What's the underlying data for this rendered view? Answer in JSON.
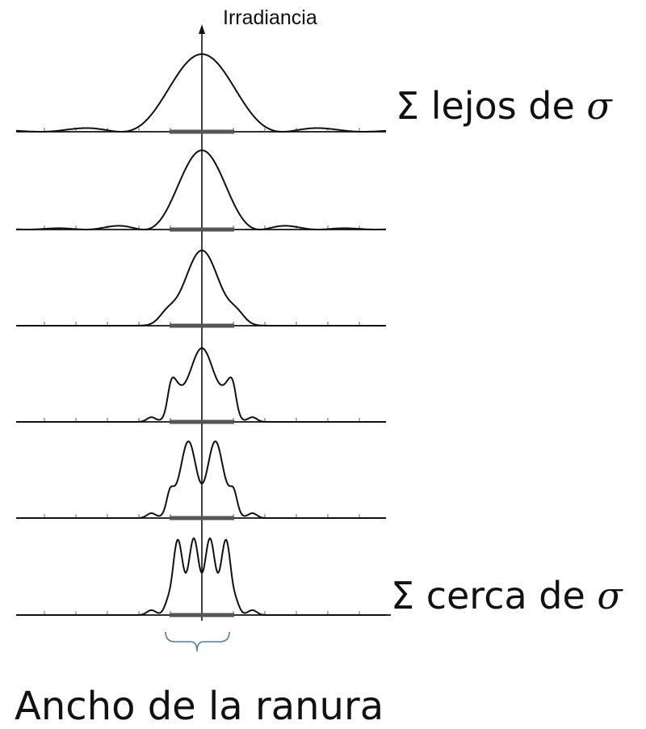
{
  "axis_label": "Irradiancia",
  "label_far": {
    "sigma_symbol": "Σ",
    "text": " lejos de ",
    "greek": "σ"
  },
  "label_near": {
    "sigma_symbol": "Σ",
    "text": " cerca de ",
    "greek": "σ"
  },
  "caption": "Ancho de la ranura",
  "colors": {
    "ink": "#111111",
    "brace": "#4a7cc7",
    "slit": "#555555"
  },
  "profiles": [
    {
      "name": "far",
      "width_scale": 1.0,
      "ripple_freq": 0.0,
      "ripple_amp": 0.0,
      "lobes": true
    },
    {
      "name": "second",
      "width_scale": 0.72,
      "ripple_freq": 0.0,
      "ripple_amp": 0.0,
      "lobes": true
    },
    {
      "name": "third",
      "width_scale": 0.62,
      "ripple_freq": 0.0,
      "ripple_amp": 0.0,
      "lobes": true
    },
    {
      "name": "fourth",
      "width_scale": 0.5,
      "ripple_freq": 2.0,
      "ripple_amp": 0.5,
      "lobes": false
    },
    {
      "name": "fifth",
      "width_scale": 0.5,
      "ripple_freq": 3.0,
      "ripple_amp": 0.55,
      "lobes": false
    },
    {
      "name": "near",
      "width_scale": 0.5,
      "ripple_freq": 5.0,
      "ripple_amp": 0.45,
      "lobes": false
    }
  ]
}
